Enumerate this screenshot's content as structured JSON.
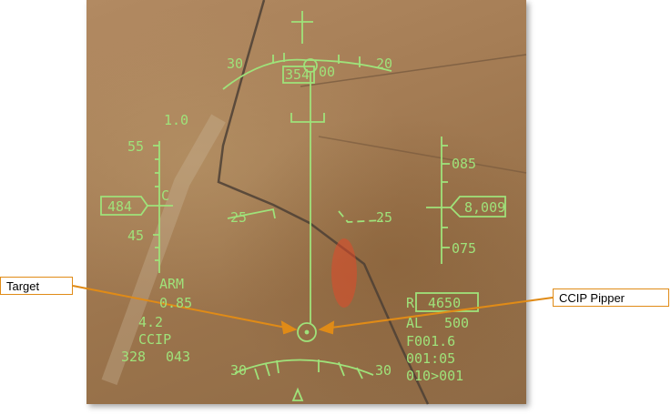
{
  "callouts": {
    "target": "Target",
    "ccip_pipper": "CCIP Pipper"
  },
  "hud": {
    "heading": "354",
    "heading_tape_right": "00",
    "pitch_top_left": "30",
    "pitch_top_right": "20",
    "pitch_mid_left": "25",
    "pitch_mid_right": "25",
    "pitch_bottom_left": "30",
    "pitch_bottom_right": "30",
    "g_value": "1.0",
    "airspeed_upper": "55",
    "airspeed_box": "484",
    "airspeed_c": "C",
    "airspeed_lower": "45",
    "altitude_upper": "085",
    "altitude_box": "8,009",
    "altitude_lower": "075",
    "arm": "ARM",
    "mach": "0.85",
    "g_load": "4.2",
    "mode": "CCIP",
    "bearing_left": "328",
    "bearing_right": "043",
    "range_r": "R",
    "range_value": "4650",
    "al_label": "AL",
    "al_value": "500",
    "fuel": "F001.6",
    "time": "001:05",
    "steerpoint": "010>001"
  },
  "colors": {
    "hud_green": "#9fe27a",
    "callout_orange": "#e08b17",
    "callout_border": "#e08b17"
  }
}
